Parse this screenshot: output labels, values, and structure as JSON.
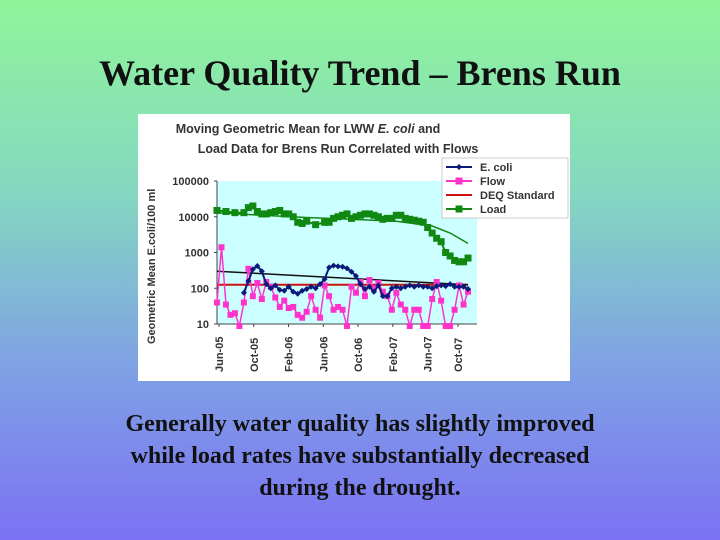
{
  "slide": {
    "title": "Water Quality Trend – Brens Run",
    "caption": [
      "Generally water quality has slightly improved",
      "while load rates have substantially decreased",
      "during the drought."
    ]
  },
  "chart_data": {
    "type": "line",
    "title_line1_prefix": "Moving Geometric Mean for LWW ",
    "title_line1_italic": "E. coli",
    "title_line1_suffix": " and",
    "title_line2": "Load Data for Brens Run Correlated with Flows",
    "ylabel": "Geometric Mean E.coli/100 ml",
    "yscale": "log",
    "ylim": [
      10,
      100000
    ],
    "yticks": [
      "10",
      "100",
      "1000",
      "10000",
      "100000"
    ],
    "xticks": [
      "Jun-05",
      "Oct-05",
      "Feb-06",
      "Jun-06",
      "Oct-06",
      "Feb-07",
      "Jun-07",
      "Oct-07"
    ],
    "xlim": [
      0,
      29
    ],
    "legend_placement": "top-right",
    "colors": {
      "plot_bg": "#ccffff",
      "ecoli": "#0a1a7a",
      "flow": "#ff33cc",
      "deq": "#cc1111",
      "load": "#118811",
      "trend": "#111111"
    },
    "series": [
      {
        "name": "E. coli",
        "x": [
          3.0,
          3.5,
          4.0,
          4.5,
          5.0,
          5.5,
          6.0,
          6.5,
          7.0,
          7.5,
          8.0,
          8.5,
          9.0,
          9.5,
          10.0,
          10.5,
          11.0,
          11.5,
          12.0,
          12.5,
          13.0,
          13.5,
          14.0,
          14.5,
          15.0,
          15.5,
          16.0,
          16.5,
          17.0,
          17.5,
          18.0,
          18.5,
          19.0,
          19.5,
          20.0,
          20.5,
          21.0,
          21.5,
          22.0,
          22.5,
          23.0,
          23.5,
          24.0,
          24.5,
          25.0,
          25.5,
          26.0,
          26.5,
          27.0,
          27.5,
          28.0
        ],
        "values": [
          75,
          160,
          340,
          420,
          300,
          130,
          100,
          120,
          90,
          85,
          110,
          80,
          70,
          85,
          95,
          110,
          100,
          130,
          180,
          380,
          430,
          410,
          400,
          360,
          290,
          220,
          130,
          95,
          110,
          80,
          120,
          60,
          60,
          100,
          110,
          100,
          110,
          120,
          110,
          120,
          110,
          110,
          100,
          115,
          120,
          115,
          130,
          110,
          110,
          110,
          95
        ]
      },
      {
        "name": "Flow",
        "x": [
          0,
          0.5,
          1,
          1.5,
          2,
          2.5,
          3,
          3.5,
          4,
          4.5,
          5,
          5.5,
          6,
          6.5,
          7,
          7.5,
          8,
          8.5,
          9,
          9.5,
          10,
          10.5,
          11,
          11.5,
          12,
          12.5,
          13,
          13.5,
          14,
          14.5,
          15,
          15.5,
          16,
          16.5,
          17,
          17.5,
          18,
          18.5,
          19,
          19.5,
          20,
          20.5,
          21,
          21.5,
          22,
          22.5,
          23,
          23.5,
          24,
          24.5,
          25,
          25.5,
          26,
          26.5,
          27,
          27.5,
          28
        ],
        "values": [
          40,
          1400,
          35,
          18,
          20,
          8,
          40,
          350,
          60,
          140,
          50,
          150,
          110,
          55,
          30,
          45,
          28,
          30,
          18,
          15,
          22,
          60,
          25,
          15,
          120,
          60,
          25,
          30,
          25,
          6,
          110,
          75,
          150,
          60,
          170,
          100,
          140,
          80,
          60,
          25,
          75,
          35,
          25,
          8,
          25,
          25,
          6,
          8,
          50,
          150,
          45,
          8,
          8,
          25,
          120,
          35,
          80
        ]
      },
      {
        "name": "DEQ Standard",
        "x": [
          0,
          28
        ],
        "values": [
          126,
          126
        ]
      },
      {
        "name": "Load",
        "x": [
          0,
          1,
          2,
          3,
          3.5,
          4,
          4.5,
          5,
          5.5,
          6,
          6.5,
          7,
          7.5,
          8,
          8.5,
          9,
          9.5,
          10,
          11,
          12,
          12.5,
          13,
          13.5,
          14,
          14.5,
          15,
          15.5,
          16,
          16.5,
          17,
          17.5,
          18,
          18.5,
          19,
          19.5,
          20,
          20.5,
          21,
          21.5,
          22,
          22.5,
          23,
          23.5,
          24,
          24.5,
          25,
          25.5,
          26,
          26.5,
          27,
          27.5,
          28
        ],
        "values": [
          15000,
          14000,
          13000,
          13000,
          18000,
          20000,
          14000,
          12000,
          12000,
          13000,
          14000,
          15000,
          12000,
          12000,
          10000,
          7000,
          6500,
          7500,
          6000,
          7000,
          7000,
          9000,
          10000,
          11000,
          12000,
          9000,
          10000,
          11000,
          12000,
          12000,
          11000,
          10000,
          8500,
          9000,
          9000,
          11000,
          11000,
          9000,
          8500,
          8000,
          7500,
          7000,
          5000,
          3500,
          2500,
          2000,
          1000,
          800,
          600,
          550,
          550,
          700
        ]
      },
      {
        "values": [
          {
            "x": 0,
            "y": 13000
          },
          {
            "x": 5,
            "y": 11000
          },
          {
            "x": 10,
            "y": 9500
          },
          {
            "x": 15,
            "y": 8500
          },
          {
            "x": 20,
            "y": 7500
          },
          {
            "x": 24,
            "y": 5500
          },
          {
            "x": 26,
            "y": 3500
          },
          {
            "x": 28,
            "y": 1800
          }
        ]
      },
      {
        "values": [
          {
            "x": 0,
            "y": 300
          },
          {
            "x": 28,
            "y": 125
          }
        ]
      }
    ]
  }
}
